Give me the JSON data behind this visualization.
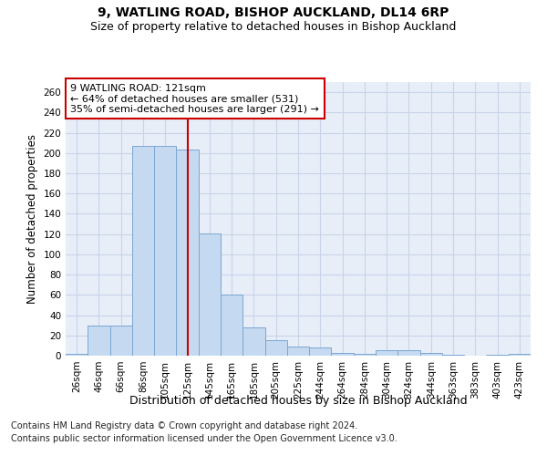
{
  "title1": "9, WATLING ROAD, BISHOP AUCKLAND, DL14 6RP",
  "title2": "Size of property relative to detached houses in Bishop Auckland",
  "xlabel": "Distribution of detached houses by size in Bishop Auckland",
  "ylabel": "Number of detached properties",
  "categories": [
    "26sqm",
    "46sqm",
    "66sqm",
    "86sqm",
    "105sqm",
    "125sqm",
    "145sqm",
    "165sqm",
    "185sqm",
    "205sqm",
    "225sqm",
    "244sqm",
    "264sqm",
    "284sqm",
    "304sqm",
    "324sqm",
    "344sqm",
    "363sqm",
    "383sqm",
    "403sqm",
    "423sqm"
  ],
  "values": [
    2,
    30,
    30,
    207,
    207,
    203,
    121,
    60,
    28,
    15,
    9,
    8,
    3,
    2,
    5,
    5,
    3,
    1,
    0,
    1,
    2
  ],
  "bar_color": "#c5d9f0",
  "bar_edge_color": "#7ba7d4",
  "vline_x": 5.0,
  "vline_color": "#cc0000",
  "annotation_title": "9 WATLING ROAD: 121sqm",
  "annotation_line1": "← 64% of detached houses are smaller (531)",
  "annotation_line2": "35% of semi-detached houses are larger (291) →",
  "ylim": [
    0,
    270
  ],
  "yticks": [
    0,
    20,
    40,
    60,
    80,
    100,
    120,
    140,
    160,
    180,
    200,
    220,
    240,
    260
  ],
  "footnote1": "Contains HM Land Registry data © Crown copyright and database right 2024.",
  "footnote2": "Contains public sector information licensed under the Open Government Licence v3.0.",
  "fig_bg_color": "#ffffff",
  "plot_bg_color": "#e8eef8",
  "grid_color": "#c8d4e8",
  "title1_fontsize": 10,
  "title2_fontsize": 9,
  "xlabel_fontsize": 9,
  "ylabel_fontsize": 8.5,
  "tick_fontsize": 7.5,
  "annot_fontsize": 8,
  "footnote_fontsize": 7
}
